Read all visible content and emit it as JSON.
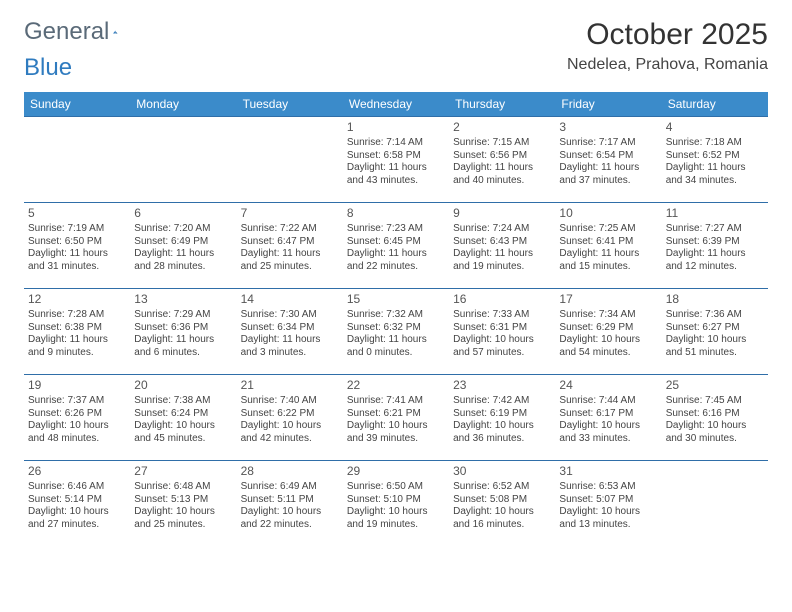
{
  "brand": {
    "word1": "General",
    "word2": "Blue"
  },
  "title": "October 2025",
  "location": "Nedelea, Prahova, Romania",
  "colors": {
    "header_bg": "#3b8bca",
    "header_text": "#ffffff",
    "row_border": "#2f6ea8",
    "logo_gray": "#5a6a78",
    "logo_blue": "#2f7bbf",
    "text": "#444444"
  },
  "weekdays": [
    "Sunday",
    "Monday",
    "Tuesday",
    "Wednesday",
    "Thursday",
    "Friday",
    "Saturday"
  ],
  "first_weekday_index": 3,
  "days": [
    {
      "n": 1,
      "sunrise": "7:14 AM",
      "sunset": "6:58 PM",
      "daylight": "11 hours and 43 minutes."
    },
    {
      "n": 2,
      "sunrise": "7:15 AM",
      "sunset": "6:56 PM",
      "daylight": "11 hours and 40 minutes."
    },
    {
      "n": 3,
      "sunrise": "7:17 AM",
      "sunset": "6:54 PM",
      "daylight": "11 hours and 37 minutes."
    },
    {
      "n": 4,
      "sunrise": "7:18 AM",
      "sunset": "6:52 PM",
      "daylight": "11 hours and 34 minutes."
    },
    {
      "n": 5,
      "sunrise": "7:19 AM",
      "sunset": "6:50 PM",
      "daylight": "11 hours and 31 minutes."
    },
    {
      "n": 6,
      "sunrise": "7:20 AM",
      "sunset": "6:49 PM",
      "daylight": "11 hours and 28 minutes."
    },
    {
      "n": 7,
      "sunrise": "7:22 AM",
      "sunset": "6:47 PM",
      "daylight": "11 hours and 25 minutes."
    },
    {
      "n": 8,
      "sunrise": "7:23 AM",
      "sunset": "6:45 PM",
      "daylight": "11 hours and 22 minutes."
    },
    {
      "n": 9,
      "sunrise": "7:24 AM",
      "sunset": "6:43 PM",
      "daylight": "11 hours and 19 minutes."
    },
    {
      "n": 10,
      "sunrise": "7:25 AM",
      "sunset": "6:41 PM",
      "daylight": "11 hours and 15 minutes."
    },
    {
      "n": 11,
      "sunrise": "7:27 AM",
      "sunset": "6:39 PM",
      "daylight": "11 hours and 12 minutes."
    },
    {
      "n": 12,
      "sunrise": "7:28 AM",
      "sunset": "6:38 PM",
      "daylight": "11 hours and 9 minutes."
    },
    {
      "n": 13,
      "sunrise": "7:29 AM",
      "sunset": "6:36 PM",
      "daylight": "11 hours and 6 minutes."
    },
    {
      "n": 14,
      "sunrise": "7:30 AM",
      "sunset": "6:34 PM",
      "daylight": "11 hours and 3 minutes."
    },
    {
      "n": 15,
      "sunrise": "7:32 AM",
      "sunset": "6:32 PM",
      "daylight": "11 hours and 0 minutes."
    },
    {
      "n": 16,
      "sunrise": "7:33 AM",
      "sunset": "6:31 PM",
      "daylight": "10 hours and 57 minutes."
    },
    {
      "n": 17,
      "sunrise": "7:34 AM",
      "sunset": "6:29 PM",
      "daylight": "10 hours and 54 minutes."
    },
    {
      "n": 18,
      "sunrise": "7:36 AM",
      "sunset": "6:27 PM",
      "daylight": "10 hours and 51 minutes."
    },
    {
      "n": 19,
      "sunrise": "7:37 AM",
      "sunset": "6:26 PM",
      "daylight": "10 hours and 48 minutes."
    },
    {
      "n": 20,
      "sunrise": "7:38 AM",
      "sunset": "6:24 PM",
      "daylight": "10 hours and 45 minutes."
    },
    {
      "n": 21,
      "sunrise": "7:40 AM",
      "sunset": "6:22 PM",
      "daylight": "10 hours and 42 minutes."
    },
    {
      "n": 22,
      "sunrise": "7:41 AM",
      "sunset": "6:21 PM",
      "daylight": "10 hours and 39 minutes."
    },
    {
      "n": 23,
      "sunrise": "7:42 AM",
      "sunset": "6:19 PM",
      "daylight": "10 hours and 36 minutes."
    },
    {
      "n": 24,
      "sunrise": "7:44 AM",
      "sunset": "6:17 PM",
      "daylight": "10 hours and 33 minutes."
    },
    {
      "n": 25,
      "sunrise": "7:45 AM",
      "sunset": "6:16 PM",
      "daylight": "10 hours and 30 minutes."
    },
    {
      "n": 26,
      "sunrise": "6:46 AM",
      "sunset": "5:14 PM",
      "daylight": "10 hours and 27 minutes."
    },
    {
      "n": 27,
      "sunrise": "6:48 AM",
      "sunset": "5:13 PM",
      "daylight": "10 hours and 25 minutes."
    },
    {
      "n": 28,
      "sunrise": "6:49 AM",
      "sunset": "5:11 PM",
      "daylight": "10 hours and 22 minutes."
    },
    {
      "n": 29,
      "sunrise": "6:50 AM",
      "sunset": "5:10 PM",
      "daylight": "10 hours and 19 minutes."
    },
    {
      "n": 30,
      "sunrise": "6:52 AM",
      "sunset": "5:08 PM",
      "daylight": "10 hours and 16 minutes."
    },
    {
      "n": 31,
      "sunrise": "6:53 AM",
      "sunset": "5:07 PM",
      "daylight": "10 hours and 13 minutes."
    }
  ],
  "labels": {
    "sunrise": "Sunrise:",
    "sunset": "Sunset:",
    "daylight": "Daylight:"
  }
}
